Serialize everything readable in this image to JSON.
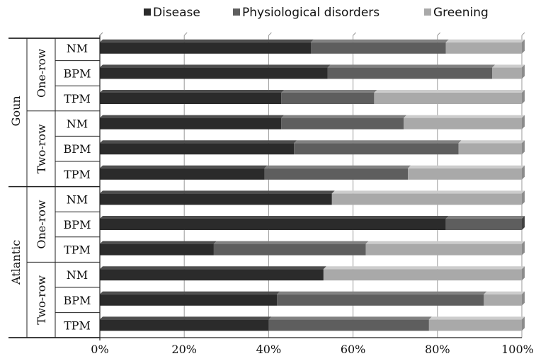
{
  "chart_data": {
    "type": "bar",
    "orientation": "horizontal",
    "stacked": "percent",
    "legend_position": "top",
    "grid": true,
    "xlim": [
      0,
      100
    ],
    "x_ticks": [
      "0%",
      "20%",
      "40%",
      "60%",
      "80%",
      "100%"
    ],
    "title": "",
    "xlabel": "",
    "ylabel": "",
    "groups": [
      {
        "name": "Goun",
        "subgroups": [
          {
            "name": "One-row",
            "rows": [
              "NM",
              "BPM",
              "TPM"
            ]
          },
          {
            "name": "Two-row",
            "rows": [
              "NM",
              "BPM",
              "TPM"
            ]
          }
        ]
      },
      {
        "name": "Atlantic",
        "subgroups": [
          {
            "name": "One-row",
            "rows": [
              "NM",
              "BPM",
              "TPM"
            ]
          },
          {
            "name": "Two-row",
            "rows": [
              "NM",
              "BPM",
              "TPM"
            ]
          }
        ]
      }
    ],
    "series": [
      {
        "name": "Disease",
        "color": "#2b2b2b",
        "values": [
          50,
          54,
          43,
          43,
          46,
          39,
          55,
          82,
          27,
          53,
          42,
          40
        ]
      },
      {
        "name": "Physiological disorders",
        "color": "#5e5e5e",
        "values": [
          32,
          39,
          22,
          29,
          39,
          34,
          0,
          18,
          36,
          0,
          49,
          38
        ]
      },
      {
        "name": "Greening",
        "color": "#a9a9a9",
        "values": [
          18,
          7,
          35,
          28,
          15,
          27,
          45,
          0,
          37,
          47,
          9,
          22
        ]
      }
    ]
  }
}
